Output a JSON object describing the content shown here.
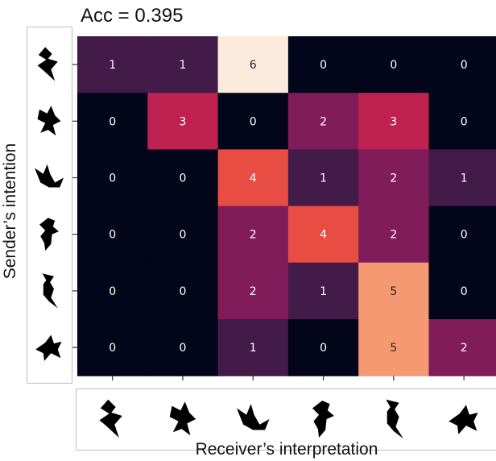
{
  "chart_data": {
    "type": "heatmap",
    "title": "Acc = 0.395",
    "xlabel": "Receiver’s interpretation",
    "ylabel": "Sender’s intention",
    "row_labels": [
      "tangram-1",
      "tangram-2",
      "tangram-3",
      "tangram-4",
      "tangram-5",
      "tangram-6"
    ],
    "col_labels": [
      "tangram-1",
      "tangram-2",
      "tangram-3",
      "tangram-4",
      "tangram-5",
      "tangram-6"
    ],
    "matrix": [
      [
        1,
        1,
        6,
        0,
        0,
        0
      ],
      [
        0,
        3,
        0,
        2,
        3,
        0
      ],
      [
        0,
        0,
        4,
        1,
        2,
        1
      ],
      [
        0,
        0,
        2,
        4,
        2,
        0
      ],
      [
        0,
        0,
        2,
        1,
        5,
        0
      ],
      [
        0,
        0,
        1,
        0,
        5,
        2
      ]
    ],
    "vmin": 0,
    "vmax": 6,
    "colormap": "rocket",
    "palette": [
      "#03051a",
      "#3a1a45",
      "#6e1d58",
      "#a5195b",
      "#d92847",
      "#f06043",
      "#f6a47c",
      "#faebdd"
    ],
    "grid": false,
    "colorbar": false
  },
  "icons": [
    "tangram-shape-1-icon",
    "tangram-shape-2-icon",
    "tangram-shape-3-icon",
    "tangram-shape-4-icon",
    "tangram-shape-5-icon",
    "tangram-shape-6-icon"
  ]
}
